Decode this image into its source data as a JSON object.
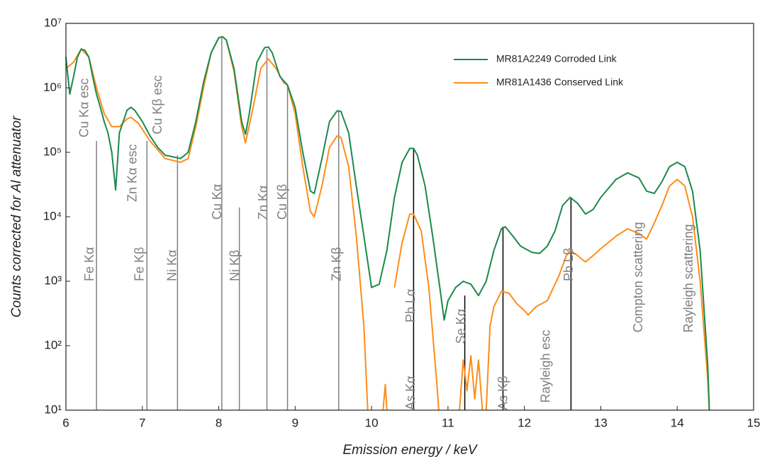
{
  "chart_data": {
    "type": "line",
    "xlabel": "Emission energy  / keV",
    "ylabel": "Counts corrected for Al attenuator",
    "xlim": [
      6,
      15
    ],
    "xticks": [
      6,
      7,
      8,
      9,
      10,
      11,
      12,
      13,
      14,
      15
    ],
    "ylim": [
      10,
      10000000
    ],
    "yscale": "log",
    "yticks": [
      {
        "value": 10,
        "label": "10¹"
      },
      {
        "value": 100,
        "label": "10²"
      },
      {
        "value": 1000,
        "label": "10³"
      },
      {
        "value": 10000,
        "label": "10⁴"
      },
      {
        "value": 100000,
        "label": "10⁵"
      },
      {
        "value": 1000000,
        "label": "10⁶"
      },
      {
        "value": 10000000,
        "label": "10⁷"
      }
    ],
    "legend": "upper right",
    "series": [
      {
        "name": "MR81A2249 Corroded Link",
        "color": "#1a8a4a",
        "x": [
          6.0,
          6.05,
          6.1,
          6.15,
          6.2,
          6.25,
          6.3,
          6.35,
          6.4,
          6.45,
          6.5,
          6.55,
          6.6,
          6.65,
          6.7,
          6.8,
          6.85,
          6.9,
          7.0,
          7.1,
          7.2,
          7.3,
          7.4,
          7.5,
          7.6,
          7.7,
          7.8,
          7.9,
          8.0,
          8.05,
          8.1,
          8.2,
          8.3,
          8.35,
          8.4,
          8.5,
          8.6,
          8.65,
          8.7,
          8.8,
          8.9,
          9.0,
          9.1,
          9.2,
          9.25,
          9.35,
          9.45,
          9.55,
          9.6,
          9.7,
          9.8,
          9.9,
          10.0,
          10.1,
          10.2,
          10.3,
          10.4,
          10.5,
          10.55,
          10.6,
          10.7,
          10.8,
          10.9,
          10.95,
          11.0,
          11.1,
          11.2,
          11.3,
          11.4,
          11.5,
          11.6,
          11.7,
          11.75,
          11.85,
          11.95,
          12.1,
          12.2,
          12.3,
          12.4,
          12.5,
          12.6,
          12.7,
          12.8,
          12.9,
          13.0,
          13.2,
          13.35,
          13.5,
          13.6,
          13.7,
          13.8,
          13.9,
          14.0,
          14.1,
          14.2,
          14.3,
          14.4,
          14.42
        ],
        "values": [
          3000000,
          800000,
          1500000,
          3000000,
          4000000,
          3800000,
          3000000,
          1500000,
          800000,
          500000,
          300000,
          200000,
          100000,
          26000,
          200000,
          450000,
          500000,
          450000,
          300000,
          180000,
          120000,
          90000,
          85000,
          80000,
          100000,
          300000,
          1200000,
          3500000,
          6000000,
          6200000,
          5500000,
          2000000,
          300000,
          190000,
          400000,
          2500000,
          4200000,
          4300000,
          3500000,
          1500000,
          1100000,
          500000,
          100000,
          25000,
          23000,
          80000,
          300000,
          440000,
          430000,
          200000,
          30000,
          5000,
          800,
          900,
          3000,
          20000,
          70000,
          115000,
          115000,
          90000,
          30000,
          5000,
          700,
          250,
          500,
          800,
          1000,
          900,
          600,
          1000,
          3000,
          6500,
          7000,
          5000,
          3500,
          2800,
          2700,
          3500,
          6000,
          15000,
          20000,
          16000,
          11000,
          13000,
          20000,
          38000,
          48000,
          40000,
          25000,
          23000,
          35000,
          60000,
          70000,
          60000,
          25000,
          3000,
          50,
          10
        ]
      },
      {
        "name": "MR81A1436 Conserved Link",
        "color": "#ff8c1a",
        "x": [
          6.0,
          6.1,
          6.2,
          6.3,
          6.4,
          6.5,
          6.6,
          6.7,
          6.8,
          6.85,
          6.95,
          7.1,
          7.3,
          7.5,
          7.6,
          7.7,
          7.8,
          7.9,
          8.0,
          8.05,
          8.1,
          8.2,
          8.3,
          8.35,
          8.45,
          8.55,
          8.65,
          8.75,
          8.85,
          8.9,
          9.0,
          9.1,
          9.2,
          9.25,
          9.35,
          9.45,
          9.55,
          9.6,
          9.7,
          9.8,
          9.9,
          9.95,
          10.05,
          10.15,
          10.18,
          10.2,
          10.25,
          10.3,
          10.4,
          10.5,
          10.55,
          10.65,
          10.75,
          10.85,
          10.88,
          11.0,
          11.15,
          11.2,
          11.25,
          11.3,
          11.35,
          11.4,
          11.45,
          11.48,
          11.5,
          11.55,
          11.6,
          11.7,
          11.8,
          11.9,
          12.0,
          12.05,
          12.15,
          12.3,
          12.45,
          12.55,
          12.6,
          12.7,
          12.75,
          12.8,
          12.9,
          13.0,
          13.2,
          13.35,
          13.5,
          13.6,
          13.7,
          13.8,
          13.9,
          14.0,
          14.1,
          14.2,
          14.3,
          14.4,
          14.42
        ],
        "values": [
          2000000,
          2500000,
          4000000,
          3000000,
          1000000,
          400000,
          250000,
          250000,
          330000,
          350000,
          280000,
          150000,
          80000,
          70000,
          80000,
          250000,
          1000000,
          3500000,
          6000000,
          6200000,
          5500000,
          1800000,
          250000,
          140000,
          500000,
          2000000,
          2800000,
          2000000,
          1200000,
          1100000,
          400000,
          60000,
          12000,
          10000,
          30000,
          120000,
          180000,
          170000,
          60000,
          5000,
          200,
          10,
          null,
          10,
          25,
          10,
          null,
          800,
          4000,
          11000,
          11000,
          6000,
          800,
          30,
          10,
          null,
          10,
          60,
          20,
          70,
          15,
          60,
          10,
          null,
          10,
          200,
          400,
          700,
          650,
          450,
          350,
          300,
          400,
          500,
          1200,
          2500,
          3000,
          2500,
          2200,
          2000,
          2500,
          3200,
          5000,
          6500,
          5500,
          4500,
          8000,
          15000,
          30000,
          38000,
          30000,
          10000,
          1000,
          30,
          10
        ]
      }
    ],
    "markers": [
      {
        "x": 6.4,
        "top": 150000,
        "color": "#808080"
      },
      {
        "x": 7.06,
        "top": 150000,
        "color": "#808080"
      },
      {
        "x": 7.46,
        "top": 90000,
        "color": "#808080"
      },
      {
        "x": 8.04,
        "top": 6000000,
        "color": "#808080"
      },
      {
        "x": 8.27,
        "top": 14000,
        "color": "#808080"
      },
      {
        "x": 8.63,
        "top": 4000000,
        "color": "#808080"
      },
      {
        "x": 8.9,
        "top": 1100000,
        "color": "#808080"
      },
      {
        "x": 9.57,
        "top": 440000,
        "color": "#808080"
      },
      {
        "x": 10.55,
        "top": 115000,
        "color": "#000000"
      },
      {
        "x": 11.22,
        "top": 600,
        "color": "#000000"
      },
      {
        "x": 11.72,
        "top": 7000,
        "color": "#000000"
      },
      {
        "x": 12.61,
        "top": 20000,
        "color": "#000000"
      }
    ],
    "annotations": [
      {
        "label": "Cu Kα esc",
        "x": 6.25,
        "y": 170000
      },
      {
        "label": "Fe Kα",
        "x": 6.32,
        "y": 1000
      },
      {
        "label": "Zn Kα esc",
        "x": 6.88,
        "y": 17000
      },
      {
        "label": "Cu Kβ esc",
        "x": 7.21,
        "y": 190000
      },
      {
        "label": "Fe Kβ",
        "x": 6.97,
        "y": 1000
      },
      {
        "label": "Ni Kα",
        "x": 7.4,
        "y": 1000
      },
      {
        "label": "Cu Kα",
        "x": 7.99,
        "y": 9000
      },
      {
        "label": "Ni Kβ",
        "x": 8.22,
        "y": 1000
      },
      {
        "label": "Zn Kα",
        "x": 8.59,
        "y": 9000
      },
      {
        "label": "Cu Kβ",
        "x": 8.84,
        "y": 9000
      },
      {
        "label": "Zn Kβ",
        "x": 9.55,
        "y": 1000
      },
      {
        "label": "Pb Lα",
        "x": 10.52,
        "y": 230
      },
      {
        "label": "As Kα",
        "x": 10.52,
        "y": 10
      },
      {
        "label": "Se Kα",
        "x": 11.18,
        "y": 107
      },
      {
        "label": "As Kβ",
        "x": 11.73,
        "y": 10
      },
      {
        "label": "Rayleigh esc",
        "x": 12.29,
        "y": 13
      },
      {
        "label": "Pb Lβ",
        "x": 12.59,
        "y": 1000
      },
      {
        "label": "Compton scattering",
        "x": 13.5,
        "y": 160
      },
      {
        "label": "Rayleigh scattering",
        "x": 14.16,
        "y": 160
      }
    ]
  }
}
